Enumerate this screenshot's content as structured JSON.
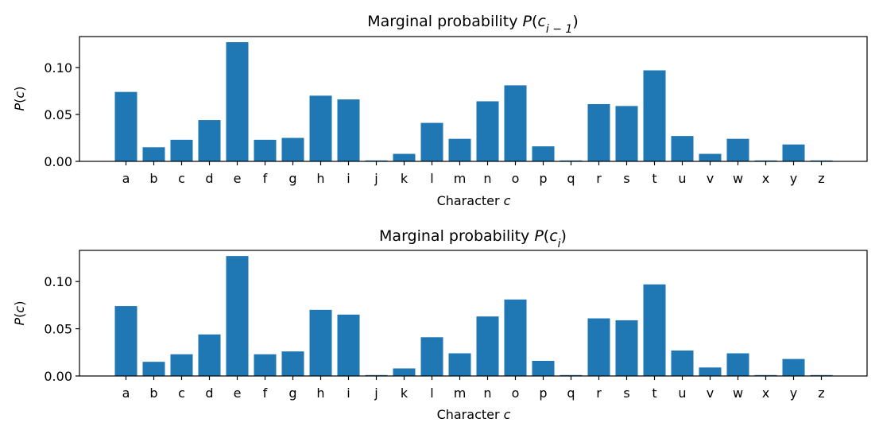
{
  "chart_data": [
    {
      "type": "bar",
      "title": "Marginal probability P(c_{i-1})",
      "title_prefix": "Marginal probability ",
      "title_var": "P",
      "title_open": "(",
      "title_c": "c",
      "title_sub": "i − 1",
      "title_close": ")",
      "xlabel_prefix": "Character ",
      "xlabel_var": "c",
      "ylabel_var_p": "P",
      "ylabel_open": "(",
      "ylabel_var_c": "c",
      "ylabel_close": ")",
      "color": "#1f77b4",
      "ylim": [
        0,
        0.133
      ],
      "yticks": [
        0.0,
        0.05,
        0.1
      ],
      "ytick_labels": [
        "0.00",
        "0.05",
        "0.10"
      ],
      "categories": [
        "a",
        "b",
        "c",
        "d",
        "e",
        "f",
        "g",
        "h",
        "i",
        "j",
        "k",
        "l",
        "m",
        "n",
        "o",
        "p",
        "q",
        "r",
        "s",
        "t",
        "u",
        "v",
        "w",
        "x",
        "y",
        "z"
      ],
      "values": [
        0.074,
        0.015,
        0.023,
        0.044,
        0.127,
        0.023,
        0.025,
        0.07,
        0.066,
        0.001,
        0.008,
        0.041,
        0.024,
        0.064,
        0.081,
        0.016,
        0.001,
        0.061,
        0.059,
        0.097,
        0.027,
        0.008,
        0.024,
        0.001,
        0.018,
        0.001
      ],
      "grid": false
    },
    {
      "type": "bar",
      "title": "Marginal probability P(c_i)",
      "title_prefix": "Marginal probability ",
      "title_var": "P",
      "title_open": "(",
      "title_c": "c",
      "title_sub": "i",
      "title_close": ")",
      "xlabel_prefix": "Character ",
      "xlabel_var": "c",
      "ylabel_var_p": "P",
      "ylabel_open": "(",
      "ylabel_var_c": "c",
      "ylabel_close": ")",
      "color": "#1f77b4",
      "ylim": [
        0,
        0.133
      ],
      "yticks": [
        0.0,
        0.05,
        0.1
      ],
      "ytick_labels": [
        "0.00",
        "0.05",
        "0.10"
      ],
      "categories": [
        "a",
        "b",
        "c",
        "d",
        "e",
        "f",
        "g",
        "h",
        "i",
        "j",
        "k",
        "l",
        "m",
        "n",
        "o",
        "p",
        "q",
        "r",
        "s",
        "t",
        "u",
        "v",
        "w",
        "x",
        "y",
        "z"
      ],
      "values": [
        0.074,
        0.015,
        0.023,
        0.044,
        0.127,
        0.023,
        0.026,
        0.07,
        0.065,
        0.001,
        0.008,
        0.041,
        0.024,
        0.063,
        0.081,
        0.016,
        0.001,
        0.061,
        0.059,
        0.097,
        0.027,
        0.009,
        0.024,
        0.001,
        0.018,
        0.001
      ],
      "grid": false
    }
  ]
}
